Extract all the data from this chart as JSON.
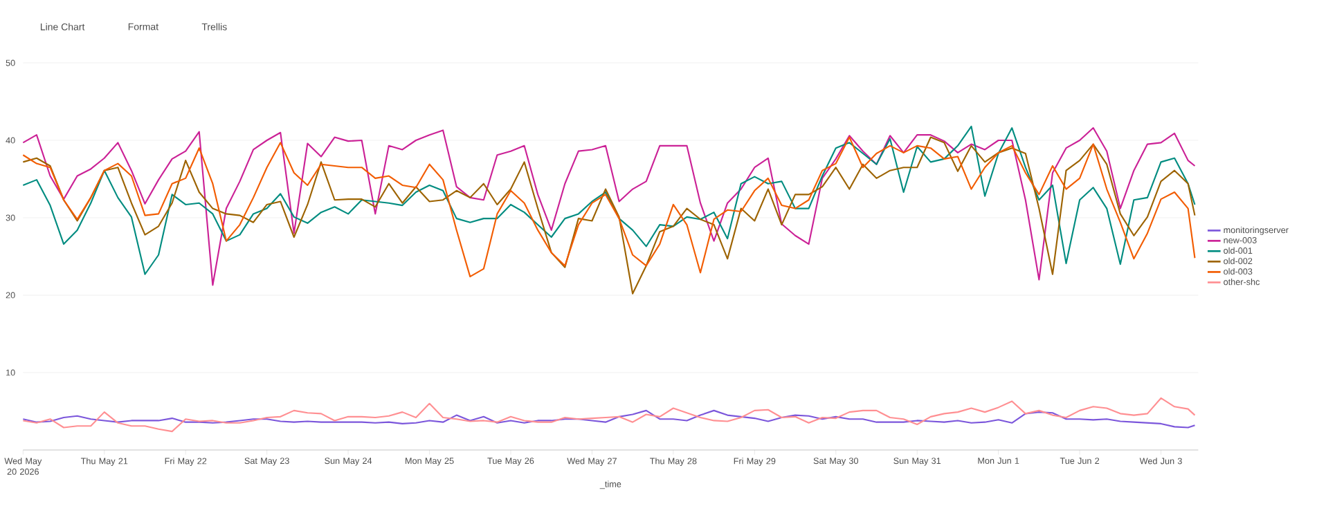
{
  "chart_data": {
    "type": "line",
    "xlabel": "_time",
    "annotations": [
      "Line Chart",
      "Format",
      "Trellis"
    ],
    "x": [
      "2026-05-20T00:00",
      "2026-05-20T04:00",
      "2026-05-20T08:00",
      "2026-05-20T12:00",
      "2026-05-20T16:00",
      "2026-05-20T20:00",
      "2026-05-21T00:00",
      "2026-05-21T04:00",
      "2026-05-21T08:00",
      "2026-05-21T12:00",
      "2026-05-21T16:00",
      "2026-05-21T20:00",
      "2026-05-22T00:00",
      "2026-05-22T04:00",
      "2026-05-22T08:00",
      "2026-05-22T12:00",
      "2026-05-22T16:00",
      "2026-05-22T20:00",
      "2026-05-23T00:00",
      "2026-05-23T04:00",
      "2026-05-23T08:00",
      "2026-05-23T12:00",
      "2026-05-23T16:00",
      "2026-05-23T20:00",
      "2026-05-24T00:00",
      "2026-05-24T04:00",
      "2026-05-24T08:00",
      "2026-05-24T12:00",
      "2026-05-24T16:00",
      "2026-05-24T20:00",
      "2026-05-25T00:00",
      "2026-05-25T04:00",
      "2026-05-25T08:00",
      "2026-05-25T12:00",
      "2026-05-25T16:00",
      "2026-05-25T20:00",
      "2026-05-26T00:00",
      "2026-05-26T04:00",
      "2026-05-26T08:00",
      "2026-05-26T12:00",
      "2026-05-26T16:00",
      "2026-05-26T20:00",
      "2026-05-27T00:00",
      "2026-05-27T04:00",
      "2026-05-27T08:00",
      "2026-05-27T12:00",
      "2026-05-27T16:00",
      "2026-05-27T20:00",
      "2026-05-28T00:00",
      "2026-05-28T04:00",
      "2026-05-28T08:00",
      "2026-05-28T12:00",
      "2026-05-28T16:00",
      "2026-05-28T20:00",
      "2026-05-29T00:00",
      "2026-05-29T04:00",
      "2026-05-29T08:00",
      "2026-05-29T12:00",
      "2026-05-29T16:00",
      "2026-05-29T20:00",
      "2026-05-30T00:00",
      "2026-05-30T04:00",
      "2026-05-30T08:00",
      "2026-05-30T12:00",
      "2026-05-30T16:00",
      "2026-05-30T20:00",
      "2026-05-31T00:00",
      "2026-05-31T04:00",
      "2026-05-31T08:00",
      "2026-05-31T12:00",
      "2026-05-31T16:00",
      "2026-05-31T20:00",
      "2026-06-01T00:00",
      "2026-06-01T04:00",
      "2026-06-01T08:00",
      "2026-06-01T12:00",
      "2026-06-01T16:00",
      "2026-06-01T20:00",
      "2026-06-02T00:00",
      "2026-06-02T04:00",
      "2026-06-02T08:00",
      "2026-06-02T12:00",
      "2026-06-02T16:00",
      "2026-06-02T20:00",
      "2026-06-03T00:00",
      "2026-06-03T04:00",
      "2026-06-03T08:00",
      "2026-06-03T10:00"
    ],
    "series": [
      {
        "name": "monitoringserver",
        "color": "#7b56db",
        "values": [
          4.0,
          3.6,
          3.7,
          4.2,
          4.4,
          4.0,
          3.8,
          3.6,
          3.8,
          3.8,
          3.8,
          4.1,
          3.6,
          3.6,
          3.5,
          3.6,
          3.8,
          4.0,
          4.0,
          3.7,
          3.6,
          3.7,
          3.6,
          3.6,
          3.6,
          3.6,
          3.5,
          3.6,
          3.4,
          3.5,
          3.8,
          3.6,
          4.5,
          3.8,
          4.3,
          3.5,
          3.8,
          3.5,
          3.8,
          3.8,
          4.0,
          4.0,
          3.8,
          3.6,
          4.3,
          4.6,
          5.1,
          4.0,
          4.0,
          3.8,
          4.5,
          5.1,
          4.5,
          4.3,
          4.1,
          3.7,
          4.2,
          4.5,
          4.4,
          4.0,
          4.3,
          4.0,
          4.0,
          3.6,
          3.6,
          3.6,
          3.8,
          3.7,
          3.6,
          3.8,
          3.5,
          3.6,
          3.9,
          3.5,
          4.7,
          4.9,
          4.8,
          4.0,
          4.0,
          3.9,
          4.0,
          3.7,
          3.6,
          3.5,
          3.4,
          3.0,
          2.9,
          3.2
        ]
      },
      {
        "name": "new-003",
        "color": "#cb2196",
        "values": [
          39.7,
          40.7,
          35.4,
          32.4,
          35.4,
          36.3,
          37.7,
          39.7,
          36.1,
          31.8,
          34.9,
          37.6,
          38.6,
          41.1,
          21.3,
          31.2,
          34.7,
          38.8,
          40.0,
          41.0,
          28.0,
          39.6,
          37.9,
          40.4,
          39.9,
          40.0,
          30.5,
          39.3,
          38.8,
          40.0,
          40.7,
          41.3,
          34.0,
          32.6,
          32.3,
          38.1,
          38.6,
          39.3,
          33.0,
          28.4,
          34.4,
          38.6,
          38.8,
          39.3,
          32.1,
          33.7,
          34.7,
          39.3,
          39.3,
          39.3,
          31.9,
          27.0,
          31.9,
          33.7,
          36.5,
          37.7,
          29.2,
          27.7,
          26.6,
          35.1,
          37.6,
          40.6,
          38.6,
          36.9,
          40.6,
          38.4,
          40.7,
          40.7,
          39.9,
          38.4,
          39.5,
          38.8,
          40.0,
          40.0,
          32.3,
          22.0,
          35.8,
          39.0,
          40.0,
          41.6,
          38.6,
          31.2,
          36.1,
          39.5,
          39.7,
          40.9,
          37.4,
          36.7
        ]
      },
      {
        "name": "old-001",
        "color": "#008c80",
        "values": [
          34.2,
          34.9,
          31.6,
          26.6,
          28.4,
          31.9,
          36.1,
          32.6,
          30.1,
          22.7,
          25.2,
          33.0,
          31.7,
          31.9,
          30.5,
          27.0,
          27.8,
          30.5,
          31.2,
          33.1,
          30.1,
          29.3,
          30.7,
          31.4,
          30.5,
          32.3,
          32.1,
          31.9,
          31.6,
          33.3,
          34.2,
          33.5,
          29.9,
          29.4,
          29.9,
          29.9,
          31.7,
          30.7,
          29.1,
          27.5,
          29.9,
          30.5,
          32.1,
          33.3,
          29.9,
          28.4,
          26.3,
          29.1,
          28.9,
          30.1,
          29.8,
          30.7,
          27.3,
          34.4,
          35.3,
          34.4,
          34.7,
          31.2,
          31.2,
          35.4,
          39.0,
          39.7,
          38.3,
          36.9,
          40.2,
          33.3,
          39.2,
          37.2,
          37.6,
          39.3,
          41.8,
          32.8,
          38.3,
          41.6,
          36.5,
          32.3,
          34.2,
          24.1,
          32.3,
          33.9,
          31.2,
          24.0,
          32.3,
          32.6,
          37.2,
          37.7,
          34.4,
          31.7
        ]
      },
      {
        "name": "old-002",
        "color": "#9d6300",
        "values": [
          37.2,
          37.7,
          36.7,
          32.3,
          29.6,
          32.6,
          36.1,
          36.5,
          31.9,
          27.8,
          28.9,
          31.9,
          37.4,
          33.3,
          31.2,
          30.5,
          30.3,
          29.4,
          31.7,
          32.1,
          27.5,
          31.7,
          37.2,
          32.3,
          32.4,
          32.4,
          31.4,
          34.4,
          31.9,
          34.0,
          32.1,
          32.3,
          33.5,
          32.6,
          34.4,
          31.7,
          33.7,
          37.2,
          31.2,
          25.5,
          23.6,
          29.9,
          29.6,
          33.7,
          30.1,
          20.2,
          23.8,
          28.2,
          28.9,
          31.2,
          29.8,
          29.1,
          24.7,
          31.2,
          29.6,
          33.7,
          29.1,
          33.0,
          33.0,
          34.0,
          36.5,
          33.7,
          36.9,
          35.1,
          36.1,
          36.5,
          36.5,
          40.4,
          39.7,
          36.0,
          39.3,
          37.2,
          38.4,
          39.0,
          38.3,
          31.2,
          22.7,
          36.1,
          37.4,
          39.5,
          36.9,
          30.5,
          27.7,
          30.1,
          34.7,
          36.1,
          34.4,
          30.3
        ]
      },
      {
        "name": "old-003",
        "color": "#f25c00",
        "values": [
          38.1,
          37.0,
          36.5,
          32.3,
          29.8,
          32.6,
          36.1,
          37.0,
          35.4,
          30.3,
          30.5,
          34.4,
          35.1,
          39.0,
          34.4,
          27.0,
          29.1,
          32.6,
          36.5,
          39.7,
          35.8,
          34.2,
          36.9,
          36.7,
          36.5,
          36.5,
          35.1,
          35.4,
          34.2,
          33.9,
          36.9,
          34.9,
          28.4,
          22.4,
          23.4,
          30.5,
          33.5,
          31.9,
          28.4,
          25.5,
          23.8,
          29.1,
          31.9,
          33.0,
          29.9,
          25.2,
          23.8,
          26.6,
          31.7,
          29.1,
          22.9,
          29.8,
          31.0,
          30.8,
          33.5,
          35.1,
          31.6,
          31.2,
          32.3,
          36.1,
          37.0,
          40.4,
          36.5,
          38.3,
          39.3,
          38.4,
          39.3,
          39.0,
          37.6,
          37.9,
          33.7,
          36.5,
          38.4,
          39.3,
          35.8,
          33.0,
          36.7,
          33.7,
          35.1,
          39.5,
          33.7,
          29.4,
          24.7,
          28.0,
          32.4,
          33.3,
          31.2,
          24.8
        ]
      },
      {
        "name": "other-shc",
        "color": "#ff8f92",
        "values": [
          3.8,
          3.5,
          4.0,
          2.9,
          3.1,
          3.1,
          4.9,
          3.5,
          3.1,
          3.1,
          2.7,
          2.4,
          4.0,
          3.7,
          3.8,
          3.5,
          3.5,
          3.8,
          4.2,
          4.3,
          5.1,
          4.8,
          4.7,
          3.8,
          4.3,
          4.3,
          4.2,
          4.4,
          4.9,
          4.2,
          6.0,
          4.2,
          4.0,
          3.7,
          3.8,
          3.6,
          4.3,
          3.8,
          3.6,
          3.6,
          4.2,
          4.0,
          4.1,
          4.2,
          4.3,
          3.6,
          4.6,
          4.3,
          5.4,
          4.8,
          4.2,
          3.8,
          3.7,
          4.2,
          5.1,
          5.2,
          4.2,
          4.3,
          3.5,
          4.2,
          4.1,
          4.9,
          5.1,
          5.1,
          4.2,
          4.0,
          3.3,
          4.3,
          4.7,
          4.9,
          5.4,
          4.9,
          5.5,
          6.3,
          4.7,
          5.1,
          4.5,
          4.2,
          5.1,
          5.6,
          5.4,
          4.7,
          4.5,
          4.7,
          6.7,
          5.6,
          5.3,
          4.5
        ]
      }
    ],
    "xlim": [
      "2026-05-20T00:00",
      "2026-06-03T11:00"
    ],
    "xticks": [
      {
        "value": "2026-05-20",
        "label": "Wed May 20 2026"
      },
      {
        "value": "2026-05-21",
        "label": "Thu May 21"
      },
      {
        "value": "2026-05-22",
        "label": "Fri May 22"
      },
      {
        "value": "2026-05-23",
        "label": "Sat May 23"
      },
      {
        "value": "2026-05-24",
        "label": "Sun May 24"
      },
      {
        "value": "2026-05-25",
        "label": "Mon May 25"
      },
      {
        "value": "2026-05-26",
        "label": "Tue May 26"
      },
      {
        "value": "2026-05-27",
        "label": "Wed May 27"
      },
      {
        "value": "2026-05-28",
        "label": "Thu May 28"
      },
      {
        "value": "2026-05-29",
        "label": "Fri May 29"
      },
      {
        "value": "2026-05-30",
        "label": "Sat May 30"
      },
      {
        "value": "2026-05-31",
        "label": "Sun May 31"
      },
      {
        "value": "2026-06-01",
        "label": "Mon Jun 1"
      },
      {
        "value": "2026-06-02",
        "label": "Tue Jun 2"
      },
      {
        "value": "2026-06-03",
        "label": "Wed Jun 3"
      }
    ],
    "ylim": [
      0,
      50
    ],
    "yticks": [
      {
        "value": 0,
        "label": null
      },
      10,
      20,
      30,
      40,
      50
    ],
    "grid": "y",
    "legend": "right",
    "marker": "none",
    "line_style": "solid"
  }
}
